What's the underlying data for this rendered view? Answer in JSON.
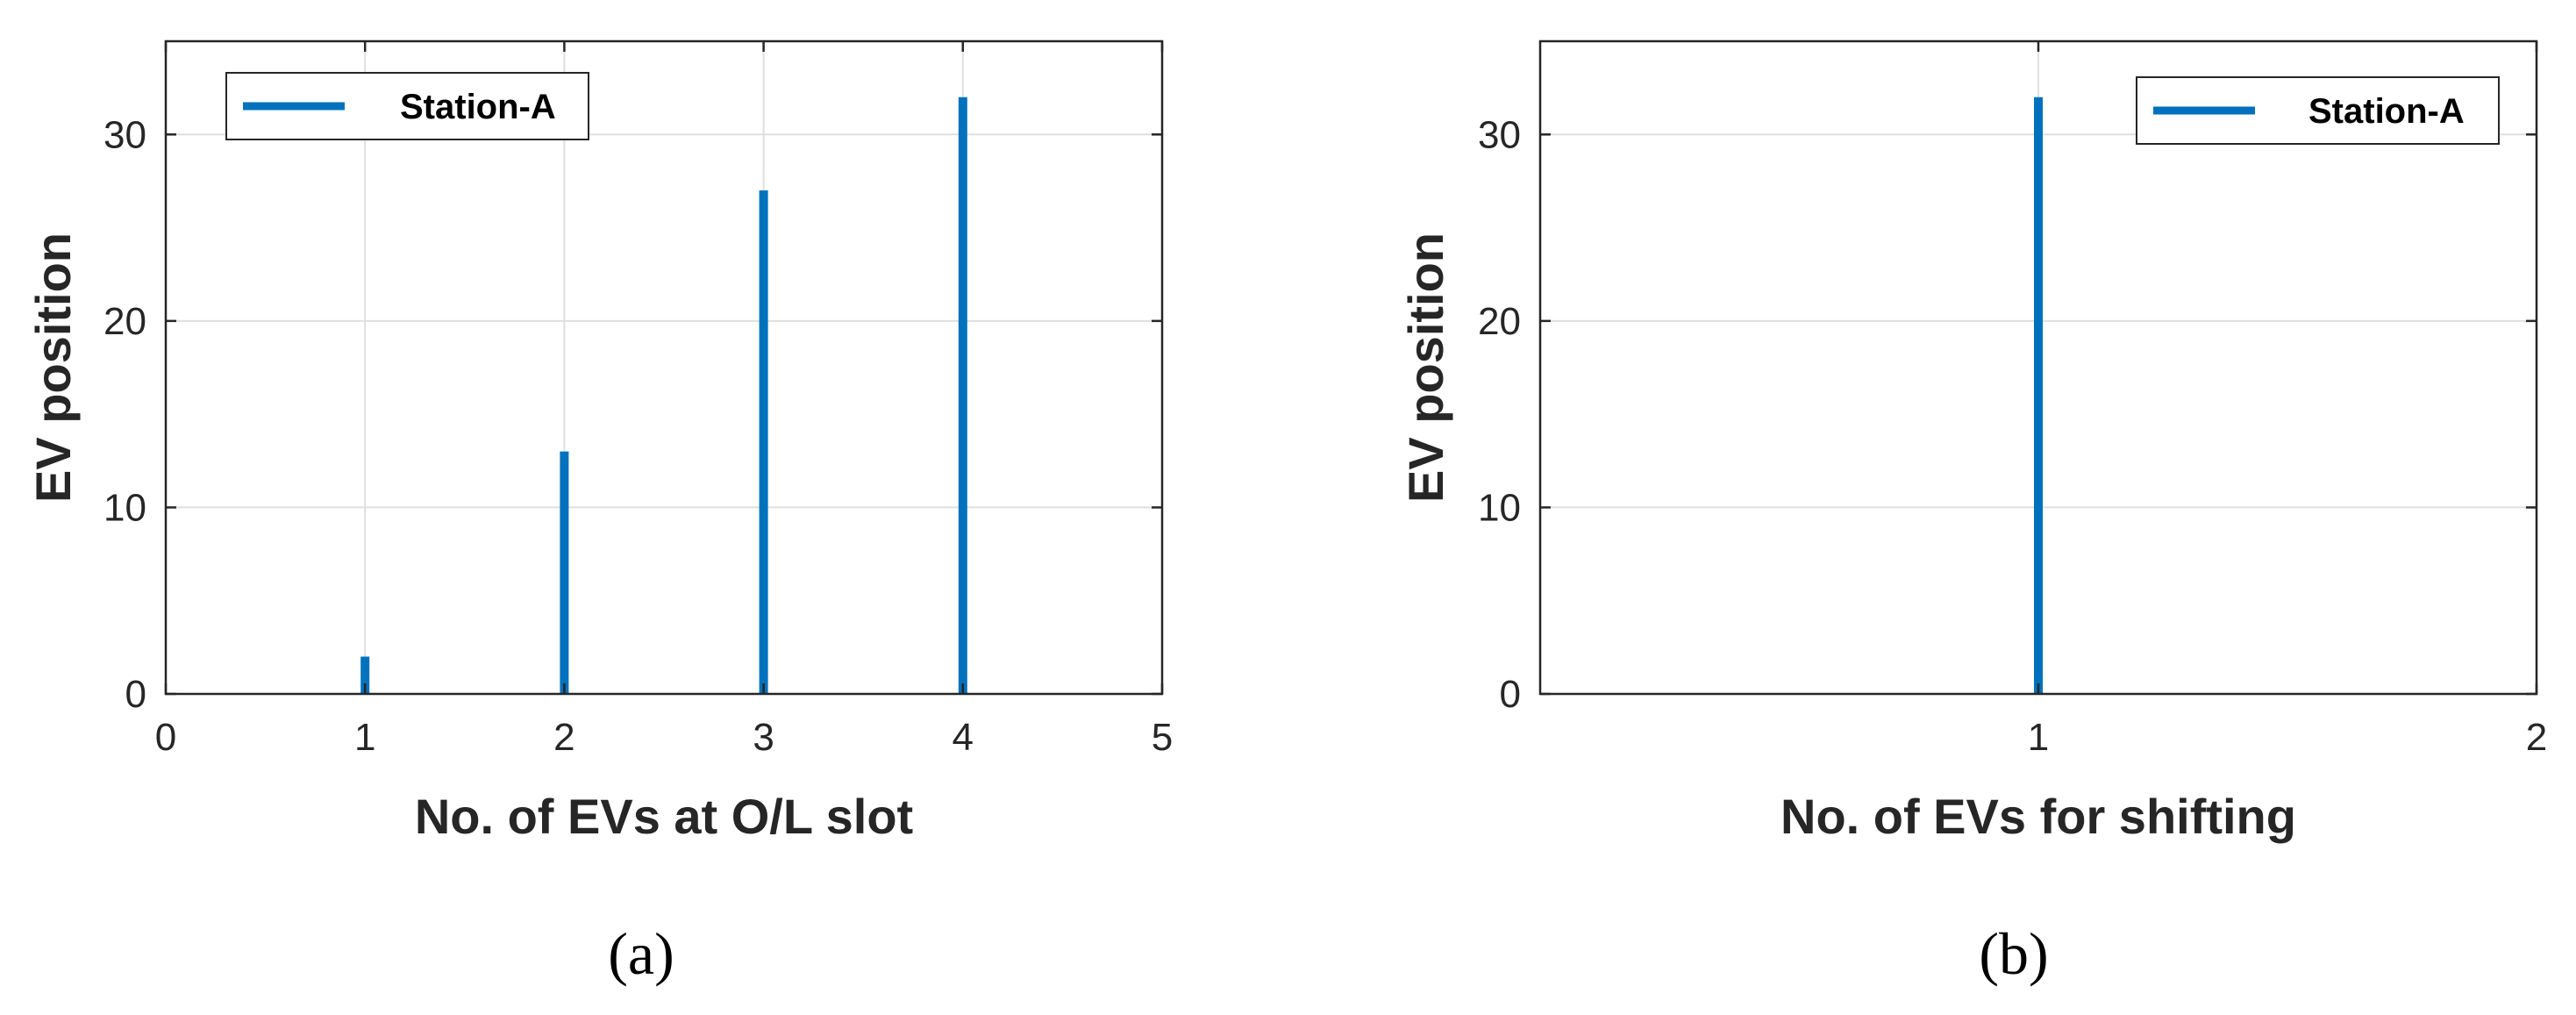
{
  "chart_data": [
    {
      "type": "bar",
      "panel_label": "(a)",
      "xlabel": "No. of EVs at O/L slot",
      "ylabel": "EV position",
      "xlim": [
        0,
        5
      ],
      "ylim": [
        0,
        35
      ],
      "xticks": [
        "0",
        "1",
        "2",
        "3",
        "4",
        "5"
      ],
      "yticks": [
        "0",
        "10",
        "20",
        "30"
      ],
      "grid": true,
      "legend_position": "top-left",
      "series": [
        {
          "name": "Station-A",
          "color": "#0072BD",
          "x": [
            1,
            2,
            3,
            4
          ],
          "values": [
            2,
            13,
            27,
            32
          ]
        }
      ]
    },
    {
      "type": "bar",
      "panel_label": "(b)",
      "xlabel": "No. of EVs for shifting",
      "ylabel": "EV position",
      "xlim": [
        0,
        2
      ],
      "ylim": [
        0,
        35
      ],
      "xticks": [
        "1",
        "2"
      ],
      "yticks": [
        "0",
        "10",
        "20",
        "30"
      ],
      "grid": true,
      "legend_position": "top-right",
      "series": [
        {
          "name": "Station-A",
          "color": "#0072BD",
          "x": [
            1
          ],
          "values": [
            32
          ]
        }
      ]
    }
  ]
}
